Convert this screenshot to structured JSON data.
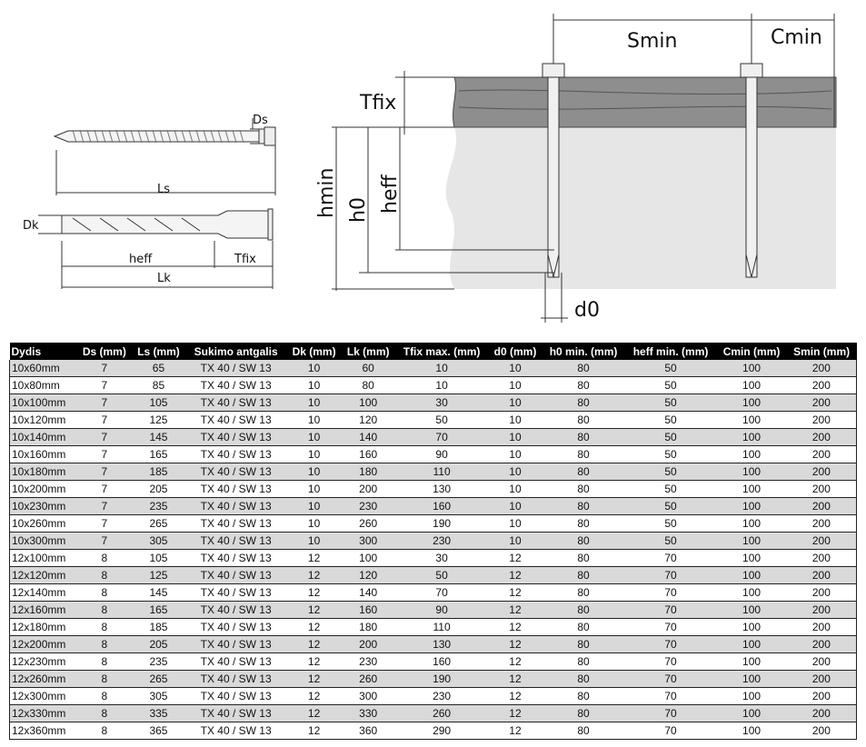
{
  "diagram": {
    "labels": {
      "ds": "Ds",
      "ls": "Ls",
      "dk": "Dk",
      "heff_left": "heff",
      "tfix_left": "Tfix",
      "lk": "Lk",
      "smin": "Smin",
      "cmin": "Cmin",
      "tfix": "Tfix",
      "hmin": "hmin",
      "h0": "h0",
      "heff": "heff",
      "d0": "d0"
    }
  },
  "table": {
    "headers": [
      "Dydis",
      "Ds (mm)",
      "Ls (mm)",
      "Sukimo antgalis",
      "Dk (mm)",
      "Lk (mm)",
      "Tfix max. (mm)",
      "d0 (mm)",
      "h0 min. (mm)",
      "heff min. (mm)",
      "Cmin (mm)",
      "Smin (mm)"
    ],
    "rows": [
      [
        "10x60mm",
        "7",
        "65",
        "TX 40 / SW 13",
        "10",
        "60",
        "10",
        "10",
        "80",
        "50",
        "100",
        "200"
      ],
      [
        "10x80mm",
        "7",
        "85",
        "TX 40 / SW 13",
        "10",
        "80",
        "10",
        "10",
        "80",
        "50",
        "100",
        "200"
      ],
      [
        "10x100mm",
        "7",
        "105",
        "TX 40 / SW 13",
        "10",
        "100",
        "30",
        "10",
        "80",
        "50",
        "100",
        "200"
      ],
      [
        "10x120mm",
        "7",
        "125",
        "TX 40 / SW 13",
        "10",
        "120",
        "50",
        "10",
        "80",
        "50",
        "100",
        "200"
      ],
      [
        "10x140mm",
        "7",
        "145",
        "TX 40 / SW 13",
        "10",
        "140",
        "70",
        "10",
        "80",
        "50",
        "100",
        "200"
      ],
      [
        "10x160mm",
        "7",
        "165",
        "TX 40 / SW 13",
        "10",
        "160",
        "90",
        "10",
        "80",
        "50",
        "100",
        "200"
      ],
      [
        "10x180mm",
        "7",
        "185",
        "TX 40 / SW 13",
        "10",
        "180",
        "110",
        "10",
        "80",
        "50",
        "100",
        "200"
      ],
      [
        "10x200mm",
        "7",
        "205",
        "TX 40 / SW 13",
        "10",
        "200",
        "130",
        "10",
        "80",
        "50",
        "100",
        "200"
      ],
      [
        "10x230mm",
        "7",
        "235",
        "TX 40 / SW 13",
        "10",
        "230",
        "160",
        "10",
        "80",
        "50",
        "100",
        "200"
      ],
      [
        "10x260mm",
        "7",
        "265",
        "TX 40 / SW 13",
        "10",
        "260",
        "190",
        "10",
        "80",
        "50",
        "100",
        "200"
      ],
      [
        "10x300mm",
        "7",
        "305",
        "TX 40 / SW 13",
        "10",
        "300",
        "230",
        "10",
        "80",
        "50",
        "100",
        "200"
      ],
      [
        "12x100mm",
        "8",
        "105",
        "TX 40 / SW 13",
        "12",
        "100",
        "30",
        "12",
        "80",
        "70",
        "100",
        "200"
      ],
      [
        "12x120mm",
        "8",
        "125",
        "TX 40 / SW 13",
        "12",
        "120",
        "50",
        "12",
        "80",
        "70",
        "100",
        "200"
      ],
      [
        "12x140mm",
        "8",
        "145",
        "TX 40 / SW 13",
        "12",
        "140",
        "70",
        "12",
        "80",
        "70",
        "100",
        "200"
      ],
      [
        "12x160mm",
        "8",
        "165",
        "TX 40 / SW 13",
        "12",
        "160",
        "90",
        "12",
        "80",
        "70",
        "100",
        "200"
      ],
      [
        "12x180mm",
        "8",
        "185",
        "TX 40 / SW 13",
        "12",
        "180",
        "110",
        "12",
        "80",
        "70",
        "100",
        "200"
      ],
      [
        "12x200mm",
        "8",
        "205",
        "TX 40 / SW 13",
        "12",
        "200",
        "130",
        "12",
        "80",
        "70",
        "100",
        "200"
      ],
      [
        "12x230mm",
        "8",
        "235",
        "TX 40 / SW 13",
        "12",
        "230",
        "160",
        "12",
        "80",
        "70",
        "100",
        "200"
      ],
      [
        "12x260mm",
        "8",
        "265",
        "TX 40 / SW 13",
        "12",
        "260",
        "190",
        "12",
        "80",
        "70",
        "100",
        "200"
      ],
      [
        "12x300mm",
        "8",
        "305",
        "TX 40 / SW 13",
        "12",
        "300",
        "230",
        "12",
        "80",
        "70",
        "100",
        "200"
      ],
      [
        "12x330mm",
        "8",
        "335",
        "TX 40 / SW 13",
        "12",
        "330",
        "260",
        "12",
        "80",
        "70",
        "100",
        "200"
      ],
      [
        "12x360mm",
        "8",
        "365",
        "TX 40 / SW 13",
        "12",
        "360",
        "290",
        "12",
        "80",
        "70",
        "100",
        "200"
      ]
    ]
  }
}
